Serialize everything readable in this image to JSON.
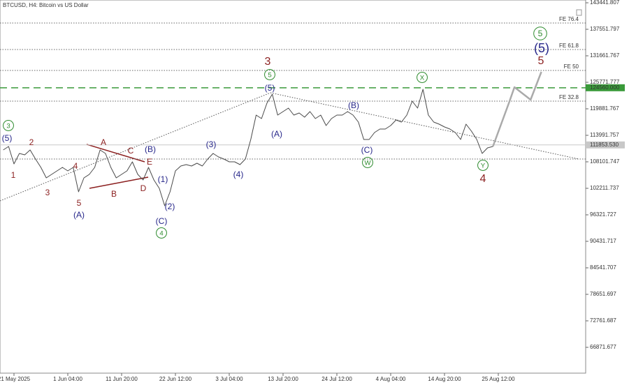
{
  "chart_data": {
    "type": "line",
    "title": "BTCUSD, H4:  Bitcoin vs US Dollar",
    "categories": [
      null,
      null,
      "21 May 2025",
      null,
      null,
      null,
      null,
      null,
      null,
      null,
      null,
      null,
      "1 Jun 04:00",
      null,
      null,
      null,
      null,
      null,
      null,
      null,
      null,
      null,
      "11 Jun 20:00",
      null,
      null,
      null,
      null,
      null,
      null,
      null,
      null,
      null,
      "22 Jun 12:00",
      null,
      null,
      null,
      null,
      null,
      null,
      null,
      null,
      null,
      "3 Jul 04:00",
      null,
      null,
      null,
      null,
      null,
      null,
      null,
      null,
      null,
      "13 Jul 20:00",
      null,
      null,
      null,
      null,
      null,
      null,
      null,
      null,
      null,
      "24 Jul 12:00",
      null,
      null,
      null,
      null,
      null,
      null,
      null,
      null,
      null,
      "4 Aug 04:00",
      null,
      null,
      null,
      null,
      null,
      null,
      null,
      null,
      null,
      "14 Aug 20:00",
      null,
      null,
      null,
      null,
      null,
      null,
      null,
      null,
      null,
      "25 Aug 12:00",
      null,
      null,
      null,
      null,
      null,
      null,
      null,
      null
    ],
    "series": [
      {
        "color": "#4a4a4a",
        "values": [
          110737,
          111512,
          107637,
          109962,
          109652,
          110737,
          108722,
          106862,
          104537,
          105312,
          106087,
          106862,
          106087,
          106862,
          101437,
          104537,
          105312,
          106862,
          110737,
          109962,
          106862,
          104537,
          105312,
          106087,
          108102,
          105312,
          104072,
          106862,
          104072,
          102212,
          98337,
          101437,
          106087,
          107172,
          107482,
          107172,
          107792,
          107172,
          108722,
          109962,
          109187,
          108722,
          108102,
          108102,
          107482,
          108722,
          113062,
          118487,
          117712,
          121122,
          123137,
          118487,
          119262,
          120037,
          118487,
          118952,
          118022,
          119262,
          117712,
          118487,
          116162,
          117712,
          118487,
          118487,
          119262,
          118487,
          116937,
          113062,
          113062,
          114612,
          115387,
          115387,
          116162,
          117402,
          116937,
          118487,
          121587,
          120037,
          124222,
          118487,
          116937,
          116472,
          115852,
          115387,
          114612,
          113062,
          116472,
          114922,
          113062,
          109962,
          111202,
          111512,
          null,
          null,
          null,
          null,
          null,
          null,
          null,
          null,
          null
        ]
      },
      {
        "color": "#aaaaaa",
        "values": [
          null,
          null,
          null,
          null,
          null,
          null,
          null,
          null,
          null,
          null,
          null,
          null,
          null,
          null,
          null,
          null,
          null,
          null,
          null,
          null,
          null,
          null,
          null,
          null,
          null,
          null,
          null,
          null,
          null,
          null,
          null,
          null,
          null,
          null,
          null,
          null,
          null,
          null,
          null,
          null,
          null,
          null,
          null,
          null,
          null,
          null,
          null,
          null,
          null,
          null,
          null,
          null,
          null,
          null,
          null,
          null,
          null,
          null,
          null,
          null,
          null,
          null,
          null,
          null,
          null,
          null,
          null,
          null,
          null,
          null,
          null,
          null,
          null,
          null,
          null,
          null,
          null,
          null,
          null,
          null,
          null,
          null,
          null,
          null,
          null,
          null,
          null,
          null,
          null,
          null,
          null,
          111512,
          114767,
          118022,
          121277,
          124687,
          123757,
          122827,
          121897,
          124997,
          128097
        ]
      }
    ],
    "ylim": [
      61136,
      144062
    ],
    "yticks": [
      143441.807,
      137551.797,
      131661.767,
      125771.777,
      119881.767,
      113991.757,
      108101.747,
      102211.737,
      96321.727,
      90431.717,
      84541.707,
      78651.697,
      72761.687,
      66871.677
    ],
    "levels": [
      {
        "label": "FE 76.4",
        "value": 138947
      },
      {
        "label": "FE 61.8",
        "value": 133057
      },
      {
        "label": "FE 50",
        "value": 128407
      },
      {
        "label": "FE 32.8",
        "value": 121587
      }
    ],
    "support_level": 108722,
    "target_level": {
      "value": 124560,
      "label": "124560.000",
      "color": "#3a9a3a"
    },
    "price_line": {
      "value": 111853.53,
      "label": "111853.530"
    },
    "wave_labels": [
      {
        "text": "3",
        "color": "#2e8b2e",
        "circled": true
      },
      {
        "text": "(5)",
        "color": "#26268a",
        "circled": false
      },
      {
        "text": "2",
        "color": "#8b1f1f",
        "circled": false
      },
      {
        "text": "1",
        "color": "#8b1f1f",
        "circled": false
      },
      {
        "text": "3",
        "color": "#8b1f1f",
        "circled": false
      },
      {
        "text": "4",
        "color": "#8b1f1f",
        "circled": false
      },
      {
        "text": "5",
        "color": "#8b1f1f",
        "circled": false
      },
      {
        "text": "(A)",
        "color": "#26268a",
        "circled": false
      },
      {
        "text": "A",
        "color": "#8b1f1f",
        "circled": false
      },
      {
        "text": "B",
        "color": "#8b1f1f",
        "circled": false
      },
      {
        "text": "C",
        "color": "#8b1f1f",
        "circled": false
      },
      {
        "text": "(B)",
        "color": "#26268a",
        "circled": false
      },
      {
        "text": "E",
        "color": "#8b1f1f",
        "circled": false
      },
      {
        "text": "D",
        "color": "#8b1f1f",
        "circled": false
      },
      {
        "text": "(1)",
        "color": "#26268a",
        "circled": false
      },
      {
        "text": "(2)",
        "color": "#26268a",
        "circled": false
      },
      {
        "text": "(C)",
        "color": "#26268a",
        "circled": false
      },
      {
        "text": "4",
        "color": "#2e8b2e",
        "circled": true
      },
      {
        "text": "(3)",
        "color": "#26268a",
        "circled": false
      },
      {
        "text": "(4)",
        "color": "#26268a",
        "circled": false
      },
      {
        "text": "3",
        "color": "#8b1f1f",
        "circled": false
      },
      {
        "text": "5",
        "color": "#2e8b2e",
        "circled": true
      },
      {
        "text": "(5)",
        "color": "#26268a",
        "circled": false
      },
      {
        "text": "(A)",
        "color": "#26268a",
        "circled": false
      },
      {
        "text": "(B)",
        "color": "#26268a",
        "circled": false
      },
      {
        "text": "(C)",
        "color": "#26268a",
        "circled": false
      },
      {
        "text": "W",
        "color": "#2e8b2e",
        "circled": true
      },
      {
        "text": "X",
        "color": "#2e8b2e",
        "circled": true
      },
      {
        "text": "Y",
        "color": "#2e8b2e",
        "circled": true
      },
      {
        "text": "4",
        "color": "#8b1f1f",
        "circled": false
      },
      {
        "text": "5",
        "color": "#2e8b2e",
        "circled": true
      },
      {
        "text": "(5)",
        "color": "#26268a",
        "circled": false
      },
      {
        "text": "5",
        "color": "#8b1f1f",
        "circled": false
      }
    ]
  }
}
